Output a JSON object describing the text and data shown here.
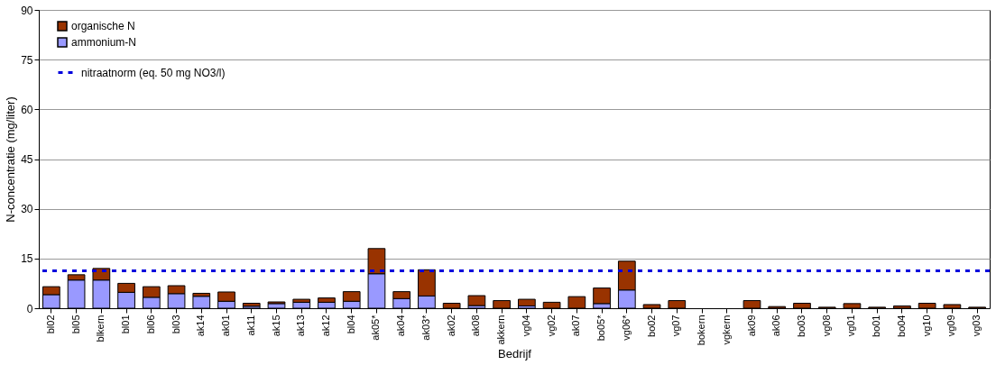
{
  "chart_data": {
    "type": "bar",
    "stacked": true,
    "xlabel": "Bedrijf",
    "ylabel": "N-concentratie (mg/liter)",
    "categories": [
      "bl02",
      "bl05",
      "blkern",
      "bl01",
      "bl06",
      "bl03",
      "ak14",
      "ak01",
      "ak11",
      "ak15",
      "ak13",
      "ak12",
      "bl04",
      "ak05*",
      "ak04",
      "ak03*",
      "ak02",
      "ak08",
      "akkern",
      "vg04",
      "vg02",
      "ak07",
      "bo05*",
      "vg06*",
      "bo02",
      "vg07",
      "bokern",
      "vgkern",
      "ak09",
      "ak06",
      "bo03",
      "vg08",
      "vg01",
      "bo01",
      "bo04",
      "vg10",
      "vg09",
      "vg03"
    ],
    "series": [
      {
        "name": "ammonium-N",
        "color": "#9999ff",
        "values": [
          4.1,
          8.5,
          8.5,
          4.8,
          3.3,
          4.4,
          3.6,
          2.1,
          0.6,
          1.4,
          1.8,
          1.8,
          2.1,
          10.4,
          2.9,
          3.7,
          0,
          0.8,
          0,
          0.7,
          0,
          0,
          1.4,
          5.5,
          0,
          0,
          null,
          null,
          0,
          0,
          0,
          0,
          0,
          0,
          0,
          0,
          0,
          0
        ]
      },
      {
        "name": "organische N",
        "color": "#993300",
        "values": [
          2.4,
          1.6,
          3.5,
          2.7,
          3.2,
          2.4,
          0.9,
          2.8,
          0.9,
          0.5,
          0.9,
          1.3,
          2.9,
          7.6,
          2.1,
          7.9,
          1.5,
          3.0,
          2.3,
          2.0,
          1.8,
          3.5,
          4.7,
          8.7,
          1.1,
          2.3,
          null,
          null,
          2.3,
          0.5,
          1.5,
          0.3,
          1.4,
          0.3,
          0.7,
          1.5,
          1.1,
          0.3
        ]
      }
    ],
    "ylim": [
      0,
      90
    ],
    "yticks": [
      0,
      15,
      30,
      45,
      60,
      75,
      90
    ],
    "grid": "y",
    "legend": "top left",
    "ref_lines": [
      {
        "axis": "y",
        "value": 11.3,
        "label": "nitraatnorm (eq. 50 mg NO3/l)",
        "color": "#0000dd",
        "line_style": "dashed"
      }
    ]
  }
}
